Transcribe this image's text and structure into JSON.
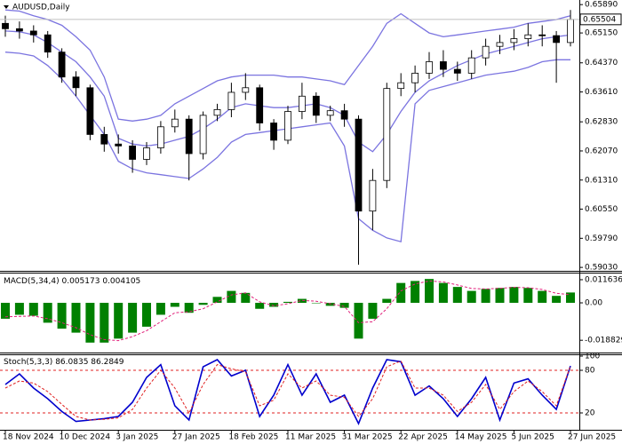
{
  "chart_data": [
    {
      "type": "candlestick",
      "title": "AUDUSD,Daily",
      "categories": [
        "18 Nov 2024",
        null,
        null,
        null,
        "10 Dec 2024",
        null,
        null,
        null,
        "3 Jan 2025",
        null,
        null,
        null,
        "27 Jan 2025",
        null,
        null,
        null,
        "18 Feb 2025",
        null,
        null,
        null,
        "11 Mar 2025",
        null,
        null,
        null,
        "31 Mar 2025",
        null,
        null,
        null,
        "22 Apr 2025",
        null,
        null,
        null,
        "14 May 2025",
        null,
        null,
        null,
        "5 Jun 2025",
        null,
        null,
        null,
        "27 Jun 2025"
      ],
      "open": [
        0.654,
        0.6526,
        0.652,
        0.651,
        0.6465,
        0.64,
        0.6372,
        0.625,
        0.6225,
        0.622,
        0.6185,
        0.6215,
        0.627,
        0.629,
        0.62,
        0.63,
        0.6315,
        0.636,
        0.6372,
        0.628,
        0.6235,
        0.631,
        0.635,
        0.63,
        0.6312,
        0.629,
        0.605,
        0.613,
        0.637,
        0.6385,
        0.641,
        0.644,
        0.642,
        0.641,
        0.645,
        0.648,
        0.649,
        0.65,
        0.651,
        0.6508,
        0.649
      ],
      "high": [
        0.656,
        0.6545,
        0.6535,
        0.652,
        0.6475,
        0.6415,
        0.638,
        0.627,
        0.625,
        0.6235,
        0.623,
        0.6285,
        0.6315,
        0.63,
        0.631,
        0.633,
        0.6385,
        0.641,
        0.638,
        0.629,
        0.6325,
        0.6385,
        0.636,
        0.6325,
        0.633,
        0.63,
        0.616,
        0.6385,
        0.641,
        0.643,
        0.6465,
        0.647,
        0.644,
        0.647,
        0.65,
        0.651,
        0.6525,
        0.654,
        0.6535,
        0.652,
        0.6575
      ],
      "low": [
        0.6505,
        0.65,
        0.649,
        0.645,
        0.6385,
        0.635,
        0.6235,
        0.6205,
        0.62,
        0.615,
        0.617,
        0.62,
        0.6255,
        0.613,
        0.6185,
        0.6285,
        0.6295,
        0.634,
        0.626,
        0.621,
        0.6225,
        0.629,
        0.628,
        0.6285,
        0.627,
        0.591,
        0.6,
        0.611,
        0.635,
        0.636,
        0.6395,
        0.64,
        0.639,
        0.6395,
        0.643,
        0.646,
        0.647,
        0.648,
        0.648,
        0.6385,
        0.648
      ],
      "close": [
        0.6526,
        0.652,
        0.651,
        0.6465,
        0.64,
        0.6372,
        0.625,
        0.6225,
        0.622,
        0.6185,
        0.6215,
        0.627,
        0.629,
        0.62,
        0.63,
        0.6315,
        0.636,
        0.6372,
        0.628,
        0.6235,
        0.631,
        0.635,
        0.63,
        0.6312,
        0.629,
        0.605,
        0.613,
        0.637,
        0.6385,
        0.641,
        0.644,
        0.642,
        0.641,
        0.645,
        0.648,
        0.649,
        0.65,
        0.651,
        0.6508,
        0.649,
        0.65504
      ],
      "up_color": "#ffffff",
      "down_color": "#000000",
      "series": [
        {
          "color": "#7b74e0",
          "values": [
            0.6575,
            0.6572,
            0.656,
            0.655,
            0.6535,
            0.6505,
            0.647,
            0.64,
            0.629,
            0.6285,
            0.629,
            0.63,
            0.633,
            0.635,
            0.637,
            0.639,
            0.64,
            0.6405,
            0.6405,
            0.6405,
            0.64,
            0.64,
            0.6395,
            0.639,
            0.638,
            0.643,
            0.648,
            0.654,
            0.6565,
            0.654,
            0.6515,
            0.6505,
            0.651,
            0.6515,
            0.652,
            0.6525,
            0.653,
            0.654,
            0.6545,
            0.655,
            0.656
          ]
        },
        {
          "color": "#7b74e0",
          "values": [
            0.652,
            0.6518,
            0.651,
            0.649,
            0.6465,
            0.644,
            0.64,
            0.635,
            0.624,
            0.6225,
            0.622,
            0.6225,
            0.6235,
            0.6245,
            0.6265,
            0.629,
            0.632,
            0.633,
            0.6325,
            0.632,
            0.632,
            0.6325,
            0.633,
            0.632,
            0.63,
            0.623,
            0.6205,
            0.625,
            0.631,
            0.636,
            0.639,
            0.641,
            0.643,
            0.6445,
            0.646,
            0.647,
            0.648,
            0.649,
            0.65,
            0.6505,
            0.651
          ]
        },
        {
          "color": "#7b74e0",
          "values": [
            0.6465,
            0.6462,
            0.6455,
            0.643,
            0.6395,
            0.635,
            0.63,
            0.625,
            0.618,
            0.616,
            0.615,
            0.6145,
            0.614,
            0.6135,
            0.616,
            0.619,
            0.623,
            0.625,
            0.6255,
            0.626,
            0.6265,
            0.627,
            0.6275,
            0.628,
            0.622,
            0.603,
            0.6,
            0.598,
            0.597,
            0.633,
            0.6365,
            0.6375,
            0.6385,
            0.6395,
            0.6405,
            0.641,
            0.6415,
            0.6425,
            0.644,
            0.6445,
            0.6445
          ]
        }
      ],
      "last": {
        "value": 0.65504,
        "label": "0.65504"
      },
      "ylim": [
        0.5894,
        0.6601
      ],
      "yticks": [
        {
          "value": 0.6589,
          "label": "0.65890"
        },
        {
          "value": 0.6515,
          "label": "0.65150"
        },
        {
          "value": 0.6437,
          "label": "0.64370"
        },
        {
          "value": 0.6361,
          "label": "0.63610"
        },
        {
          "value": 0.6283,
          "label": "0.62830"
        },
        {
          "value": 0.6207,
          "label": "0.62070"
        },
        {
          "value": 0.6131,
          "label": "0.61310"
        },
        {
          "value": 0.6055,
          "label": "0.60550"
        },
        {
          "value": 0.5979,
          "label": "0.59790"
        },
        {
          "value": 0.5903,
          "label": "0.59030"
        }
      ]
    },
    {
      "type": "bar",
      "title": "MACD(5,34,4)",
      "main_value": 0.005173,
      "signal_value": 0.004105,
      "series": [
        {
          "color": "#008000",
          "values": [
            -0.008,
            -0.006,
            -0.0065,
            -0.01,
            -0.013,
            -0.015,
            -0.02,
            -0.02,
            -0.018,
            -0.015,
            -0.012,
            -0.006,
            -0.002,
            -0.005,
            -0.001,
            0.003,
            0.006,
            0.005,
            -0.003,
            -0.002,
            0.0005,
            0.002,
            0.0,
            -0.0015,
            -0.0025,
            -0.018,
            -0.008,
            0.002,
            0.01,
            0.011,
            0.012,
            0.01,
            0.008,
            0.006,
            0.007,
            0.0075,
            0.008,
            0.0075,
            0.006,
            0.0035,
            0.0052
          ]
        },
        {
          "color": "#e0207a",
          "dash": true,
          "values": [
            -0.007,
            -0.0068,
            -0.0066,
            -0.008,
            -0.01,
            -0.0125,
            -0.016,
            -0.0185,
            -0.019,
            -0.017,
            -0.014,
            -0.0095,
            -0.005,
            -0.0045,
            -0.003,
            0.0005,
            0.004,
            0.005,
            0.0005,
            -0.0015,
            -0.0005,
            0.0012,
            0.0008,
            -0.0005,
            -0.0018,
            -0.01,
            -0.0095,
            -0.003,
            0.006,
            0.0095,
            0.011,
            0.0105,
            0.009,
            0.0072,
            0.007,
            0.0073,
            0.0078,
            0.0076,
            0.0067,
            0.0048,
            0.0041
          ]
        }
      ],
      "ylim": [
        -0.025,
        0.0152
      ],
      "yticks": [
        0.011636,
        {
          "value": 0,
          "label": "0.00"
        },
        -0.018829
      ]
    },
    {
      "type": "line",
      "title": "Stoch(5,3,3)",
      "main_value": 86.0835,
      "signal_value": 86.2849,
      "series": [
        {
          "color": "#0000cd",
          "values": [
            60,
            75,
            55,
            40,
            22,
            8,
            10,
            12,
            15,
            35,
            70,
            88,
            30,
            10,
            85,
            95,
            72,
            80,
            15,
            45,
            88,
            45,
            75,
            35,
            45,
            5,
            55,
            95,
            92,
            45,
            58,
            40,
            15,
            40,
            70,
            10,
            62,
            68,
            45,
            25,
            86.0835
          ]
        },
        {
          "color": "#e02020",
          "dash": true,
          "values": [
            55,
            65,
            62,
            50,
            32,
            15,
            10,
            11,
            13,
            25,
            55,
            80,
            55,
            20,
            60,
            88,
            82,
            78,
            30,
            38,
            75,
            55,
            65,
            45,
            42,
            15,
            40,
            85,
            93,
            55,
            55,
            45,
            22,
            35,
            60,
            25,
            50,
            65,
            50,
            30,
            86.2849
          ]
        }
      ],
      "levels": [
        80,
        20
      ],
      "level_color": "#e02020",
      "ylim": [
        0,
        100
      ],
      "yticks": [
        100,
        80,
        20
      ]
    }
  ]
}
